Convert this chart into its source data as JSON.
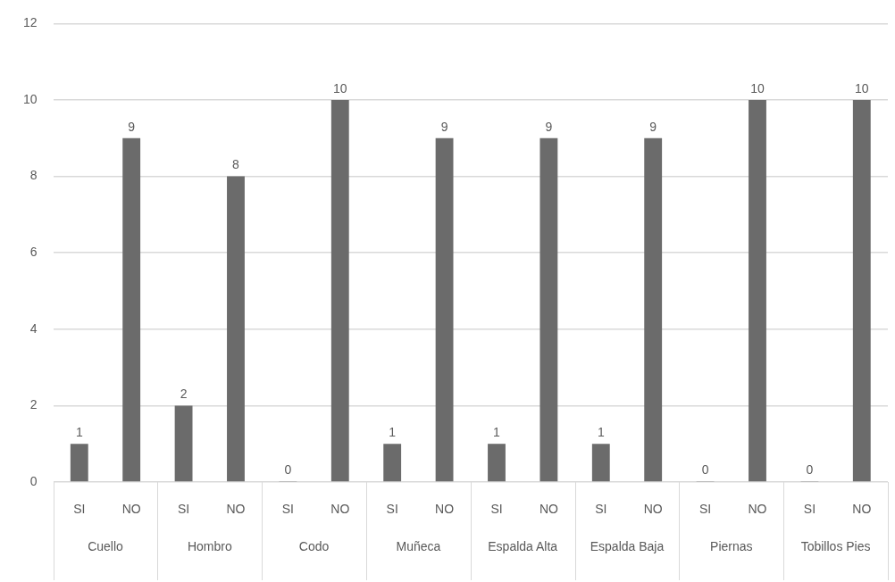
{
  "chart_data": {
    "type": "bar",
    "categories": [
      "Cuello",
      "Hombro",
      "Codo",
      "Muñeca",
      "Espalda Alta",
      "Espalda Baja",
      "Piernas",
      "Tobillos Pies"
    ],
    "series": [
      {
        "name": "SI",
        "color": "#6b6b6b",
        "values": [
          1,
          2,
          0,
          1,
          1,
          1,
          0,
          0
        ]
      },
      {
        "name": "NO",
        "color": "#6b6b6b",
        "values": [
          9,
          8,
          10,
          9,
          9,
          9,
          10,
          10
        ]
      }
    ],
    "ylim": [
      0,
      12
    ],
    "yticks": [
      0,
      2,
      4,
      6,
      8,
      10,
      12
    ],
    "grid": "y",
    "legend": false,
    "data_labels": true
  }
}
